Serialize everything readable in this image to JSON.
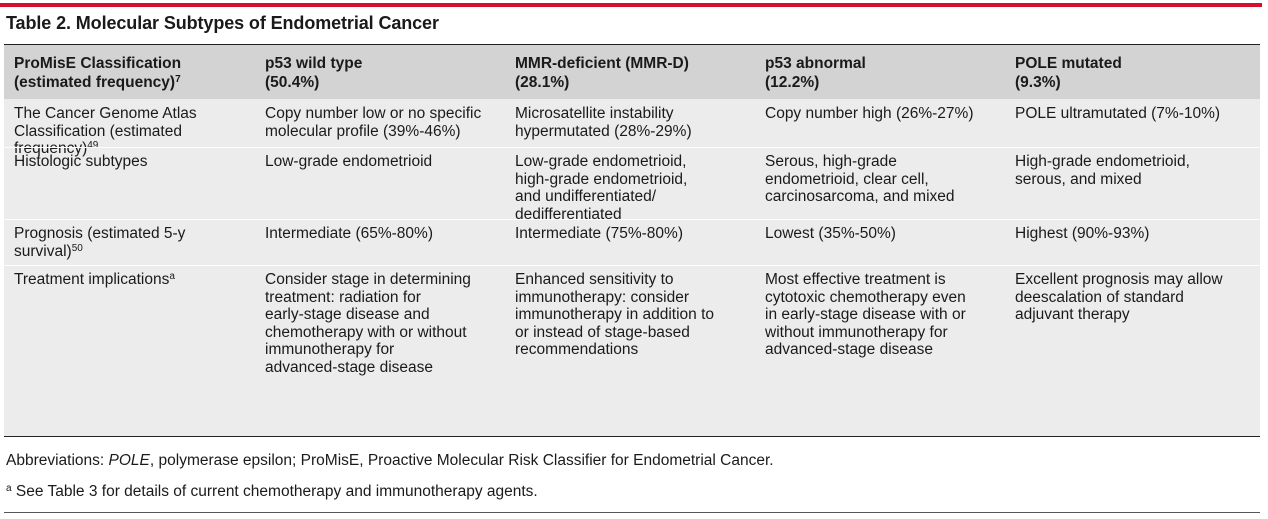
{
  "accent_color": "#d5102e",
  "title": "Table 2. Molecular Subtypes of Endometrial Cancer",
  "header": [
    {
      "text": "ProMisE Classification\n(estimated frequency)",
      "sup": "7"
    },
    {
      "text": "p53 wild type\n(50.4%)",
      "sup": ""
    },
    {
      "text": "MMR-deficient (MMR-D)\n(28.1%)",
      "sup": ""
    },
    {
      "text": "p53 abnormal\n(12.2%)",
      "sup": ""
    },
    {
      "text": "POLE mutated\n(9.3%)",
      "sup": ""
    }
  ],
  "rows": [
    {
      "label": "The Cancer Genome Atlas\nClassification (estimated\nfrequency)",
      "label_sup": "49",
      "cells": [
        "Copy number low or no specific\nmolecular profile (39%-46%)",
        "Microsatellite instability\nhypermutated (28%-29%)",
        "Copy number high (26%-27%)",
        "POLE ultramutated (7%-10%)"
      ]
    },
    {
      "label": "Histologic subtypes",
      "label_sup": "",
      "cells": [
        "Low-grade endometrioid",
        "Low-grade endometrioid,\nhigh-grade endometrioid,\nand undifferentiated/\ndedifferentiated",
        "Serous, high-grade\nendometrioid, clear cell,\ncarcinosarcoma, and mixed",
        "High-grade endometrioid,\nserous, and mixed"
      ]
    },
    {
      "label": "Prognosis (estimated 5-y\nsurvival)",
      "label_sup": "50",
      "cells": [
        "Intermediate (65%-80%)",
        "Intermediate (75%-80%)",
        "Lowest (35%-50%)",
        "Highest (90%-93%)"
      ]
    },
    {
      "label": "Treatment implications",
      "label_sup": "a",
      "cells": [
        "Consider stage in determining\ntreatment: radiation for\nearly-stage disease and\nchemotherapy with or without\nimmunotherapy for\nadvanced-stage disease",
        "Enhanced sensitivity to\nimmunotherapy: consider\nimmunotherapy in addition to\nor instead of stage-based\nrecommendations",
        "Most effective treatment is\ncytotoxic chemotherapy even\nin early-stage disease with or\nwithout immunotherapy for\nadvanced-stage disease",
        "Excellent prognosis may allow\ndeescalation of standard\nadjuvant therapy"
      ]
    }
  ],
  "abbreviations": {
    "prefix": "Abbreviations: ",
    "term1": "POLE",
    "rest": ", polymerase epsilon; ProMisE, Proactive Molecular Risk Classifier for Endometrial Cancer."
  },
  "footnote": {
    "marker": "a",
    "text": " See Table 3 for details of current chemotherapy and immunotherapy agents."
  }
}
